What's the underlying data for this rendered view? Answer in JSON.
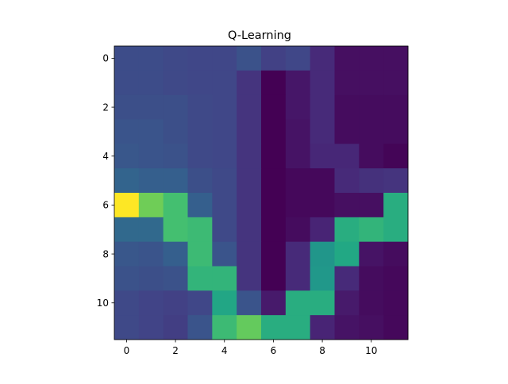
{
  "chart_data": {
    "type": "heatmap",
    "title": "Q-Learning",
    "xlabel": "",
    "ylabel": "",
    "x_ticks": [
      "0",
      "2",
      "4",
      "6",
      "8",
      "10"
    ],
    "y_ticks": [
      "0",
      "2",
      "4",
      "6",
      "8",
      "10"
    ],
    "x_range": [
      -0.5,
      11.5
    ],
    "y_range": [
      -0.5,
      11.5
    ],
    "y_axis_inverted": true,
    "colormap": "viridis",
    "value_range": [
      0,
      1
    ],
    "grid": false,
    "rows": 12,
    "cols": 12,
    "values": [
      [
        0.23,
        0.23,
        0.22,
        0.21,
        0.21,
        0.25,
        0.19,
        0.21,
        0.12,
        0.04,
        0.04,
        0.04
      ],
      [
        0.23,
        0.23,
        0.22,
        0.21,
        0.21,
        0.15,
        0.0,
        0.06,
        0.12,
        0.04,
        0.04,
        0.04
      ],
      [
        0.24,
        0.24,
        0.24,
        0.22,
        0.21,
        0.15,
        0.0,
        0.06,
        0.12,
        0.03,
        0.03,
        0.03
      ],
      [
        0.26,
        0.26,
        0.24,
        0.22,
        0.21,
        0.15,
        0.0,
        0.05,
        0.12,
        0.03,
        0.03,
        0.03
      ],
      [
        0.27,
        0.26,
        0.25,
        0.22,
        0.21,
        0.15,
        0.0,
        0.05,
        0.11,
        0.11,
        0.03,
        0.01
      ],
      [
        0.32,
        0.3,
        0.3,
        0.24,
        0.22,
        0.15,
        0.0,
        0.02,
        0.02,
        0.12,
        0.14,
        0.15
      ],
      [
        1.0,
        0.78,
        0.7,
        0.3,
        0.22,
        0.15,
        0.0,
        0.02,
        0.02,
        0.04,
        0.04,
        0.62
      ],
      [
        0.34,
        0.34,
        0.7,
        0.68,
        0.22,
        0.15,
        0.0,
        0.03,
        0.1,
        0.62,
        0.65,
        0.62
      ],
      [
        0.27,
        0.26,
        0.3,
        0.68,
        0.26,
        0.15,
        0.0,
        0.12,
        0.52,
        0.6,
        0.05,
        0.03
      ],
      [
        0.25,
        0.24,
        0.25,
        0.65,
        0.65,
        0.15,
        0.0,
        0.12,
        0.53,
        0.12,
        0.03,
        0.02
      ],
      [
        0.22,
        0.2,
        0.19,
        0.21,
        0.59,
        0.26,
        0.07,
        0.62,
        0.62,
        0.07,
        0.03,
        0.02
      ],
      [
        0.22,
        0.2,
        0.18,
        0.26,
        0.68,
        0.76,
        0.62,
        0.62,
        0.1,
        0.05,
        0.04,
        0.02
      ]
    ]
  }
}
